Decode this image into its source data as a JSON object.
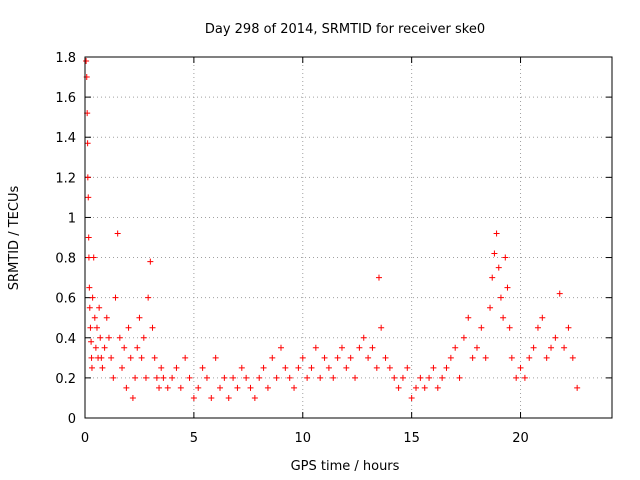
{
  "chart_data": {
    "type": "scatter",
    "title": "Day 298 of 2014, SRMTID for receiver ske0",
    "xlabel": "GPS time / hours",
    "ylabel": "SRMTID / TECUs",
    "xlim": [
      0,
      24.2
    ],
    "ylim": [
      0,
      1.8
    ],
    "xticks": [
      0,
      5,
      10,
      15,
      20
    ],
    "xtick_labels": [
      "0",
      "5",
      "10",
      "15",
      "20"
    ],
    "yticks": [
      0,
      0.2,
      0.4,
      0.6,
      0.8,
      1,
      1.2,
      1.4,
      1.6,
      1.8
    ],
    "ytick_labels": [
      "0",
      "0.2",
      "0.4",
      "0.6",
      "0.8",
      "1",
      "1.2",
      "1.4",
      "1.6",
      "1.8"
    ],
    "grid": true,
    "marker": "+",
    "color": "#ff0000",
    "series": [
      {
        "name": "SRMTID",
        "x": [
          0.05,
          0.08,
          0.1,
          0.12,
          0.13,
          0.15,
          0.17,
          0.18,
          0.2,
          0.22,
          0.25,
          0.28,
          0.3,
          0.32,
          0.35,
          0.4,
          0.45,
          0.5,
          0.55,
          0.6,
          0.65,
          0.7,
          0.75,
          0.8,
          0.9,
          1.0,
          1.1,
          1.2,
          1.3,
          1.4,
          1.5,
          1.6,
          1.7,
          1.8,
          1.9,
          2.0,
          2.1,
          2.2,
          2.3,
          2.4,
          2.5,
          2.6,
          2.7,
          2.8,
          2.9,
          3.0,
          3.1,
          3.2,
          3.3,
          3.4,
          3.5,
          3.6,
          3.8,
          4.0,
          4.2,
          4.4,
          4.6,
          4.8,
          5.0,
          5.2,
          5.4,
          5.6,
          5.8,
          6.0,
          6.2,
          6.4,
          6.6,
          6.8,
          7.0,
          7.2,
          7.4,
          7.6,
          7.8,
          8.0,
          8.2,
          8.4,
          8.6,
          8.8,
          9.0,
          9.2,
          9.4,
          9.6,
          9.8,
          10.0,
          10.2,
          10.4,
          10.6,
          10.8,
          11.0,
          11.2,
          11.4,
          11.6,
          11.8,
          12.0,
          12.2,
          12.4,
          12.6,
          12.8,
          13.0,
          13.2,
          13.4,
          13.5,
          13.6,
          13.8,
          14.0,
          14.2,
          14.4,
          14.6,
          14.8,
          15.0,
          15.2,
          15.4,
          15.6,
          15.8,
          16.0,
          16.2,
          16.4,
          16.6,
          16.8,
          17.0,
          17.2,
          17.4,
          17.6,
          17.8,
          18.0,
          18.2,
          18.4,
          18.6,
          18.7,
          18.8,
          18.9,
          19.0,
          19.1,
          19.2,
          19.3,
          19.4,
          19.5,
          19.6,
          19.8,
          20.0,
          20.2,
          20.4,
          20.6,
          20.8,
          21.0,
          21.2,
          21.4,
          21.6,
          21.8,
          22.0,
          22.2,
          22.4,
          22.6
        ],
        "y": [
          1.78,
          1.7,
          1.52,
          1.37,
          1.2,
          1.1,
          0.9,
          0.8,
          0.65,
          0.55,
          0.45,
          0.38,
          0.3,
          0.25,
          0.6,
          0.8,
          0.5,
          0.35,
          0.45,
          0.3,
          0.55,
          0.4,
          0.3,
          0.25,
          0.35,
          0.5,
          0.4,
          0.3,
          0.2,
          0.6,
          0.92,
          0.4,
          0.25,
          0.35,
          0.15,
          0.45,
          0.3,
          0.1,
          0.2,
          0.35,
          0.5,
          0.3,
          0.4,
          0.2,
          0.6,
          0.78,
          0.45,
          0.3,
          0.2,
          0.15,
          0.25,
          0.2,
          0.15,
          0.2,
          0.25,
          0.15,
          0.3,
          0.2,
          0.1,
          0.15,
          0.25,
          0.2,
          0.1,
          0.3,
          0.15,
          0.2,
          0.1,
          0.2,
          0.15,
          0.25,
          0.2,
          0.15,
          0.1,
          0.2,
          0.25,
          0.15,
          0.3,
          0.2,
          0.35,
          0.25,
          0.2,
          0.15,
          0.25,
          0.3,
          0.2,
          0.25,
          0.35,
          0.2,
          0.3,
          0.25,
          0.2,
          0.3,
          0.35,
          0.25,
          0.3,
          0.2,
          0.35,
          0.4,
          0.3,
          0.35,
          0.25,
          0.7,
          0.45,
          0.3,
          0.25,
          0.2,
          0.15,
          0.2,
          0.25,
          0.1,
          0.15,
          0.2,
          0.15,
          0.2,
          0.25,
          0.15,
          0.2,
          0.25,
          0.3,
          0.35,
          0.2,
          0.4,
          0.5,
          0.3,
          0.35,
          0.45,
          0.3,
          0.55,
          0.7,
          0.82,
          0.92,
          0.75,
          0.6,
          0.5,
          0.8,
          0.65,
          0.45,
          0.3,
          0.2,
          0.25,
          0.2,
          0.3,
          0.35,
          0.45,
          0.5,
          0.3,
          0.35,
          0.4,
          0.62,
          0.35,
          0.45,
          0.3,
          0.15
        ]
      }
    ]
  }
}
